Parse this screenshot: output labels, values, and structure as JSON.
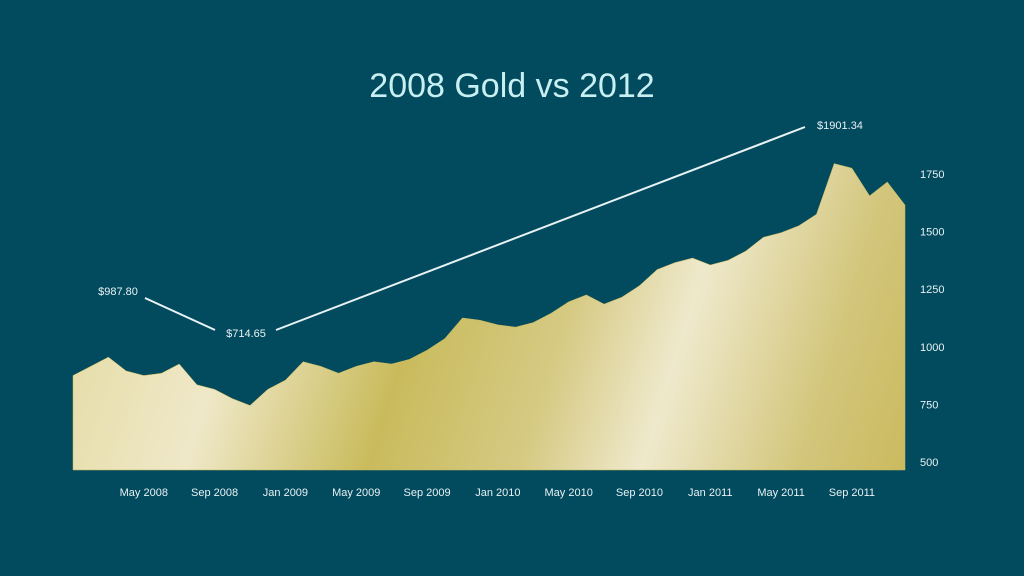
{
  "chart_data": {
    "type": "area",
    "title": "2008 Gold vs 2012",
    "x": [
      "2008-01",
      "2008-02",
      "2008-03",
      "2008-04",
      "2008-05",
      "2008-06",
      "2008-07",
      "2008-08",
      "2008-09",
      "2008-10",
      "2008-11",
      "2008-12",
      "2009-01",
      "2009-02",
      "2009-03",
      "2009-04",
      "2009-05",
      "2009-06",
      "2009-07",
      "2009-08",
      "2009-09",
      "2009-10",
      "2009-11",
      "2009-12",
      "2010-01",
      "2010-02",
      "2010-03",
      "2010-04",
      "2010-05",
      "2010-06",
      "2010-07",
      "2010-08",
      "2010-09",
      "2010-10",
      "2010-11",
      "2010-12",
      "2011-01",
      "2011-02",
      "2011-03",
      "2011-04",
      "2011-05",
      "2011-06",
      "2011-07",
      "2011-08",
      "2011-09",
      "2011-10",
      "2011-11",
      "2011-12"
    ],
    "values": [
      880,
      920,
      960,
      900,
      880,
      890,
      930,
      840,
      820,
      780,
      750,
      820,
      860,
      940,
      920,
      890,
      920,
      940,
      930,
      950,
      990,
      1040,
      1130,
      1120,
      1100,
      1090,
      1110,
      1150,
      1200,
      1230,
      1190,
      1220,
      1270,
      1340,
      1370,
      1390,
      1360,
      1380,
      1420,
      1480,
      1500,
      1530,
      1580,
      1800,
      1780,
      1660,
      1720,
      1620
    ],
    "color": "#c9b95c",
    "xlim": [
      "2008-01",
      "2011-12"
    ],
    "xticks": [
      {
        "value": "2008-05",
        "label": "May 2008"
      },
      {
        "value": "2008-09",
        "label": "Sep 2008"
      },
      {
        "value": "2009-01",
        "label": "Jan 2009"
      },
      {
        "value": "2009-05",
        "label": "May 2009"
      },
      {
        "value": "2009-09",
        "label": "Sep 2009"
      },
      {
        "value": "2010-01",
        "label": "Jan 2010"
      },
      {
        "value": "2010-05",
        "label": "May 2010"
      },
      {
        "value": "2010-09",
        "label": "Sep 2010"
      },
      {
        "value": "2011-01",
        "label": "Jan 2011"
      },
      {
        "value": "2011-05",
        "label": "May 2011"
      },
      {
        "value": "2011-09",
        "label": "Sep 2011"
      }
    ],
    "ylim": [
      470,
      2000
    ],
    "yticks": [
      500,
      750,
      1000,
      1250,
      1500,
      1750
    ],
    "annotations": [
      {
        "text": "$987.80"
      },
      {
        "text": "$714.65"
      },
      {
        "text": "$1901.34"
      }
    ]
  }
}
